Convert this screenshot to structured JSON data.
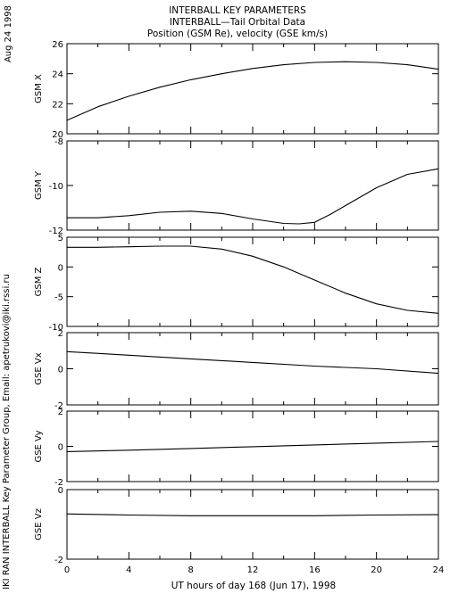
{
  "header": {
    "date": "Aug 24 1998",
    "title_lines": [
      "INTERBALL KEY PARAMETERS",
      "INTERBALL—Tail Orbital Data",
      "Position (GSM Re), velocity (GSE km/s)"
    ],
    "credit": "IKI RAN INTERBALL Key Parameter Group, Email: apetrukovi@iki.rssi.ru"
  },
  "chart_data": [
    {
      "type": "line",
      "ylabel": "GSM X",
      "xlim": [
        0,
        24
      ],
      "ylim": [
        20,
        26
      ],
      "yticks": [
        20,
        22,
        24,
        26
      ],
      "series": [
        {
          "x": [
            0,
            2,
            4,
            6,
            8,
            10,
            12,
            14,
            16,
            18,
            20,
            22,
            24
          ],
          "values": [
            20.9,
            21.8,
            22.5,
            23.1,
            23.6,
            24.0,
            24.35,
            24.6,
            24.75,
            24.8,
            24.75,
            24.6,
            24.3
          ]
        }
      ]
    },
    {
      "type": "line",
      "ylabel": "GSM Y",
      "xlim": [
        0,
        24
      ],
      "ylim": [
        -12,
        -8
      ],
      "yticks": [
        -12,
        -10,
        -8
      ],
      "series": [
        {
          "x": [
            0,
            2,
            4,
            6,
            8,
            10,
            12,
            14,
            15,
            16,
            17,
            18,
            20,
            22,
            24
          ],
          "values": [
            -11.45,
            -11.45,
            -11.35,
            -11.2,
            -11.15,
            -11.25,
            -11.5,
            -11.7,
            -11.72,
            -11.65,
            -11.3,
            -10.9,
            -10.1,
            -9.5,
            -9.25
          ]
        }
      ]
    },
    {
      "type": "line",
      "ylabel": "GSM Z",
      "xlim": [
        0,
        24
      ],
      "ylim": [
        -10,
        5
      ],
      "yticks": [
        -10,
        -5,
        0,
        5
      ],
      "series": [
        {
          "x": [
            0,
            2,
            4,
            6,
            8,
            10,
            12,
            14,
            16,
            18,
            20,
            22,
            24
          ],
          "values": [
            3.3,
            3.3,
            3.4,
            3.5,
            3.5,
            3.0,
            1.8,
            0.0,
            -2.2,
            -4.4,
            -6.2,
            -7.3,
            -7.8
          ]
        }
      ]
    },
    {
      "type": "line",
      "ylabel": "GSE Vx",
      "xlim": [
        0,
        24
      ],
      "ylim": [
        -2,
        2
      ],
      "yticks": [
        -2,
        0,
        2
      ],
      "series": [
        {
          "x": [
            0,
            4,
            8,
            12,
            16,
            20,
            24
          ],
          "values": [
            0.95,
            0.75,
            0.55,
            0.35,
            0.15,
            0.0,
            -0.25
          ]
        }
      ]
    },
    {
      "type": "line",
      "ylabel": "GSE Vy",
      "xlim": [
        0,
        24
      ],
      "ylim": [
        -2,
        2
      ],
      "yticks": [
        -2,
        0,
        2
      ],
      "series": [
        {
          "x": [
            0,
            4,
            8,
            12,
            16,
            20,
            24
          ],
          "values": [
            -0.3,
            -0.22,
            -0.12,
            -0.02,
            0.08,
            0.18,
            0.28
          ]
        }
      ]
    },
    {
      "type": "line",
      "ylabel": "GSE Vz",
      "xlim": [
        0,
        24
      ],
      "ylim": [
        -2,
        0
      ],
      "yticks": [
        -2,
        0
      ],
      "series": [
        {
          "x": [
            0,
            4,
            8,
            12,
            16,
            20,
            24
          ],
          "values": [
            -0.7,
            -0.73,
            -0.75,
            -0.75,
            -0.75,
            -0.73,
            -0.72
          ]
        }
      ]
    }
  ],
  "xaxis": {
    "label": "UT hours of day 168 (Jun 17), 1998",
    "ticks": [
      0,
      4,
      8,
      12,
      16,
      20,
      24
    ]
  }
}
